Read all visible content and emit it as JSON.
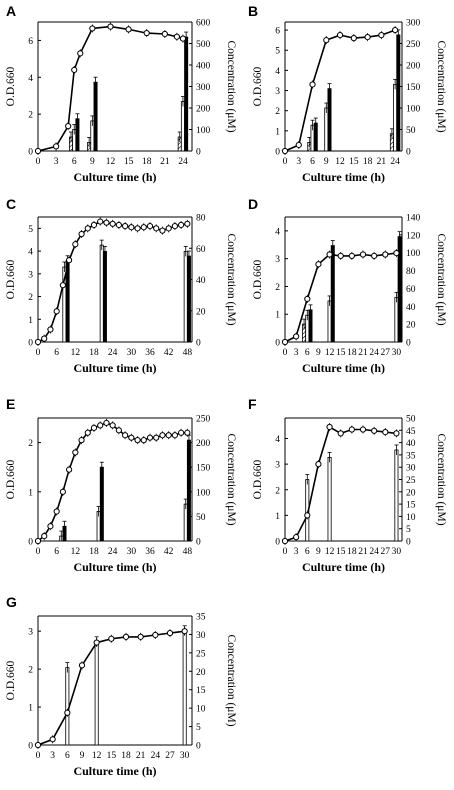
{
  "chart_data": [
    {
      "panel": "A",
      "type": "line",
      "xlabel": "Culture time (h)",
      "ylabel": "O.D.660",
      "y2label": "Concentration (μM)",
      "xticks": [
        0,
        3,
        6,
        9,
        12,
        15,
        18,
        21,
        24
      ],
      "xlim": [
        0,
        25.5
      ],
      "yticks": [
        0,
        2,
        4,
        6
      ],
      "ylim": [
        0,
        7
      ],
      "y2ticks": [
        0,
        100,
        200,
        300,
        400,
        500,
        600
      ],
      "y2lim": [
        0,
        600
      ],
      "series": [
        {
          "x": [
            0,
            3,
            5,
            6,
            7,
            9,
            12,
            15,
            18,
            21,
            23,
            24
          ],
          "y": [
            0,
            0.25,
            1.35,
            4.4,
            5.3,
            6.65,
            6.75,
            6.6,
            6.4,
            6.35,
            6.2,
            6.1
          ]
        }
      ],
      "bars": [
        {
          "x": 6,
          "values": [
            65,
            100,
            150
          ]
        },
        {
          "x": 9,
          "values": [
            40,
            140,
            320
          ]
        },
        {
          "x": 24,
          "values": [
            65,
            230,
            530
          ]
        }
      ]
    },
    {
      "panel": "B",
      "type": "line",
      "xlabel": "Culture time (h)",
      "ylabel": "O.D.660",
      "y2label": "Concentration (μM)",
      "xticks": [
        0,
        3,
        6,
        9,
        12,
        15,
        18,
        21,
        24
      ],
      "xlim": [
        0,
        25.5
      ],
      "yticks": [
        0,
        1,
        2,
        3,
        4,
        5,
        6
      ],
      "ylim": [
        0,
        6.4
      ],
      "y2ticks": [
        0,
        50,
        100,
        150,
        200,
        250,
        300
      ],
      "y2lim": [
        0,
        300
      ],
      "series": [
        {
          "x": [
            0,
            3,
            6,
            9,
            12,
            15,
            18,
            21,
            24
          ],
          "y": [
            0,
            0.3,
            3.3,
            5.5,
            5.75,
            5.6,
            5.65,
            5.75,
            6.0
          ]
        }
      ],
      "bars": [
        {
          "x": 6,
          "values": [
            20,
            60,
            65
          ]
        },
        {
          "x": 9,
          "values": [
            0,
            100,
            145
          ]
        },
        {
          "x": 24,
          "values": [
            40,
            155,
            270
          ]
        }
      ]
    },
    {
      "panel": "C",
      "type": "line",
      "xlabel": "Culture time (h)",
      "ylabel": "O.D.660",
      "y2label": "Concentration (μM)",
      "xticks": [
        0,
        6,
        12,
        18,
        24,
        30,
        36,
        42,
        48
      ],
      "xlim": [
        0,
        49.5
      ],
      "yticks": [
        0,
        1,
        2,
        3,
        4,
        5
      ],
      "ylim": [
        0,
        5.5
      ],
      "y2ticks": [
        0,
        20,
        40,
        60,
        80
      ],
      "y2lim": [
        0,
        80
      ],
      "series": [
        {
          "x": [
            0,
            2,
            4,
            6,
            8,
            10,
            12,
            14,
            16,
            18,
            20,
            22,
            24,
            26,
            28,
            30,
            32,
            34,
            36,
            38,
            40,
            42,
            44,
            46,
            48
          ],
          "y": [
            0,
            0.15,
            0.55,
            1.35,
            2.5,
            3.6,
            4.3,
            4.75,
            5.0,
            5.15,
            5.3,
            5.25,
            5.2,
            5.15,
            5.1,
            5.05,
            5.0,
            5.05,
            5.1,
            5.0,
            4.9,
            5.0,
            5.1,
            5.15,
            5.2
          ]
        }
      ],
      "bars": [
        {
          "x": 9,
          "values": [
            48,
            52
          ]
        },
        {
          "x": 21,
          "values": [
            62,
            58
          ]
        },
        {
          "x": 48,
          "values": [
            58,
            55
          ]
        }
      ]
    },
    {
      "panel": "D",
      "type": "line",
      "xlabel": "Culture time (h)",
      "ylabel": "O.D.660",
      "y2label": "Concentration (μM)",
      "xticks": [
        0,
        3,
        6,
        9,
        12,
        15,
        18,
        21,
        24,
        27,
        30
      ],
      "xlim": [
        0,
        31.5
      ],
      "yticks": [
        0,
        1,
        2,
        3,
        4
      ],
      "ylim": [
        0,
        4.5
      ],
      "y2ticks": [
        0,
        20,
        40,
        60,
        80,
        100,
        120,
        140
      ],
      "y2lim": [
        0,
        140
      ],
      "series": [
        {
          "x": [
            0,
            3,
            6,
            9,
            12,
            15,
            18,
            21,
            24,
            27,
            30
          ],
          "y": [
            0,
            0.2,
            1.55,
            2.8,
            3.15,
            3.1,
            3.1,
            3.15,
            3.1,
            3.15,
            3.2
          ]
        }
      ],
      "bars": [
        {
          "x": 6,
          "values": [
            20,
            30,
            36
          ]
        },
        {
          "x": 12,
          "values": [
            0,
            46,
            108
          ]
        },
        {
          "x": 30,
          "values": [
            0,
            50,
            118
          ]
        }
      ]
    },
    {
      "panel": "E",
      "type": "line",
      "xlabel": "Culture time (h)",
      "ylabel": "O.D.660",
      "y2label": "Concentration (μM)",
      "xticks": [
        0,
        6,
        12,
        18,
        24,
        30,
        36,
        42,
        48
      ],
      "xlim": [
        0,
        49.5
      ],
      "yticks": [
        0,
        1,
        2
      ],
      "ylim": [
        0,
        2.5
      ],
      "y2ticks": [
        0,
        50,
        100,
        150,
        200,
        250
      ],
      "y2lim": [
        0,
        250
      ],
      "series": [
        {
          "x": [
            0,
            2,
            4,
            6,
            8,
            10,
            12,
            14,
            16,
            18,
            20,
            22,
            24,
            26,
            28,
            30,
            32,
            34,
            36,
            38,
            40,
            42,
            44,
            46,
            48
          ],
          "y": [
            0,
            0.1,
            0.3,
            0.6,
            1.0,
            1.45,
            1.8,
            2.05,
            2.2,
            2.3,
            2.35,
            2.4,
            2.35,
            2.25,
            2.15,
            2.1,
            2.05,
            2.05,
            2.1,
            2.1,
            2.15,
            2.15,
            2.15,
            2.2,
            2.2
          ]
        }
      ],
      "bars": [
        {
          "x": 8,
          "values": [
            10,
            30
          ]
        },
        {
          "x": 20,
          "values": [
            60,
            150
          ]
        },
        {
          "x": 48,
          "values": [
            75,
            205
          ]
        }
      ]
    },
    {
      "panel": "F",
      "type": "line",
      "xlabel": "Culture time (h)",
      "ylabel": "O.D.660",
      "y2label": "Concentration (μM)",
      "xticks": [
        0,
        3,
        6,
        9,
        12,
        15,
        18,
        21,
        24,
        27,
        30
      ],
      "xlim": [
        0,
        31.5
      ],
      "yticks": [
        0,
        1,
        2,
        3,
        4
      ],
      "ylim": [
        0,
        4.8
      ],
      "y2ticks": [
        0,
        5,
        10,
        15,
        20,
        25,
        30,
        35,
        40,
        45,
        50
      ],
      "y2lim": [
        0,
        50
      ],
      "series": [
        {
          "x": [
            0,
            3,
            6,
            9,
            12,
            15,
            18,
            21,
            24,
            27,
            30
          ],
          "y": [
            0,
            0.15,
            1.0,
            3.0,
            4.45,
            4.2,
            4.35,
            4.35,
            4.3,
            4.25,
            4.2
          ]
        }
      ],
      "bars": [
        {
          "x": 6,
          "values": [
            25
          ]
        },
        {
          "x": 12,
          "values": [
            34
          ]
        },
        {
          "x": 30,
          "values": [
            37
          ]
        }
      ]
    },
    {
      "panel": "G",
      "type": "line",
      "xlabel": "Culture time (h)",
      "ylabel": "O.D.660",
      "y2label": "Concentration (μM)",
      "xticks": [
        0,
        3,
        6,
        9,
        12,
        15,
        18,
        21,
        24,
        27,
        30
      ],
      "xlim": [
        0,
        31.5
      ],
      "yticks": [
        0,
        1,
        2,
        3
      ],
      "ylim": [
        0,
        3.4
      ],
      "y2ticks": [
        0,
        5,
        10,
        15,
        20,
        25,
        30,
        35
      ],
      "y2lim": [
        0,
        35
      ],
      "series": [
        {
          "x": [
            0,
            3,
            6,
            9,
            12,
            15,
            18,
            21,
            24,
            27,
            30
          ],
          "y": [
            0,
            0.15,
            0.85,
            2.1,
            2.7,
            2.8,
            2.85,
            2.85,
            2.9,
            2.95,
            3.0
          ]
        }
      ],
      "bars": [
        {
          "x": 6,
          "values": [
            21
          ]
        },
        {
          "x": 12,
          "values": [
            28
          ]
        },
        {
          "x": 30,
          "values": [
            31
          ]
        }
      ]
    }
  ]
}
